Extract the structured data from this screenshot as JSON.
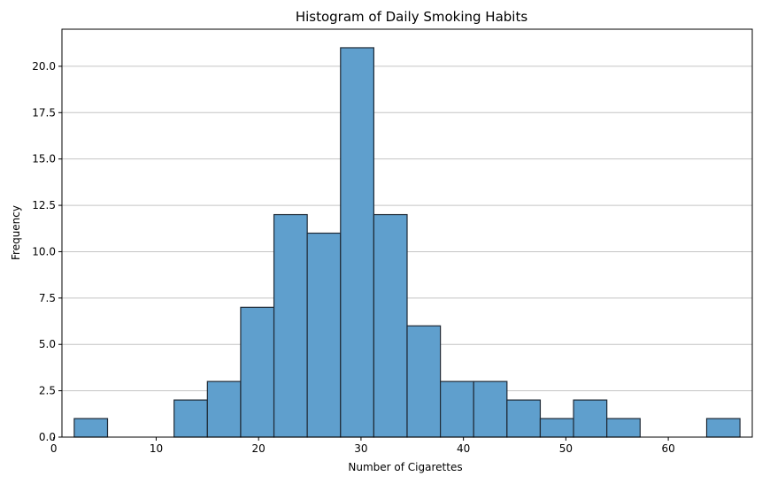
{
  "chart_data": {
    "type": "bar",
    "title": "Histogram of Daily Smoking Habits",
    "xlabel": "Number of Cigarettes",
    "ylabel": "Frequency",
    "xlim": [
      0.8,
      68.2
    ],
    "ylim": [
      0,
      22
    ],
    "grid": "y",
    "xticks": [
      "0",
      "10",
      "20",
      "30",
      "40",
      "50",
      "60",
      "70"
    ],
    "yticks": [
      "0.0",
      "2.5",
      "5.0",
      "7.5",
      "10.0",
      "12.5",
      "15.0",
      "17.5",
      "20.0"
    ],
    "bin_edges": [
      2.0,
      5.25,
      8.5,
      11.75,
      15.0,
      18.25,
      21.5,
      24.75,
      28.0,
      31.25,
      34.5,
      37.75,
      41.0,
      44.25,
      47.5,
      50.75,
      54.0,
      57.25,
      60.5,
      63.75,
      67.0
    ],
    "values": [
      1,
      0,
      0,
      2,
      3,
      7,
      12,
      11,
      21,
      12,
      6,
      3,
      3,
      2,
      1,
      2,
      1,
      0,
      0,
      1
    ],
    "colors": {
      "bar_fill": "#5f9fcd",
      "bar_edge": "#1f2a36",
      "grid": "#c4c4c4"
    }
  }
}
